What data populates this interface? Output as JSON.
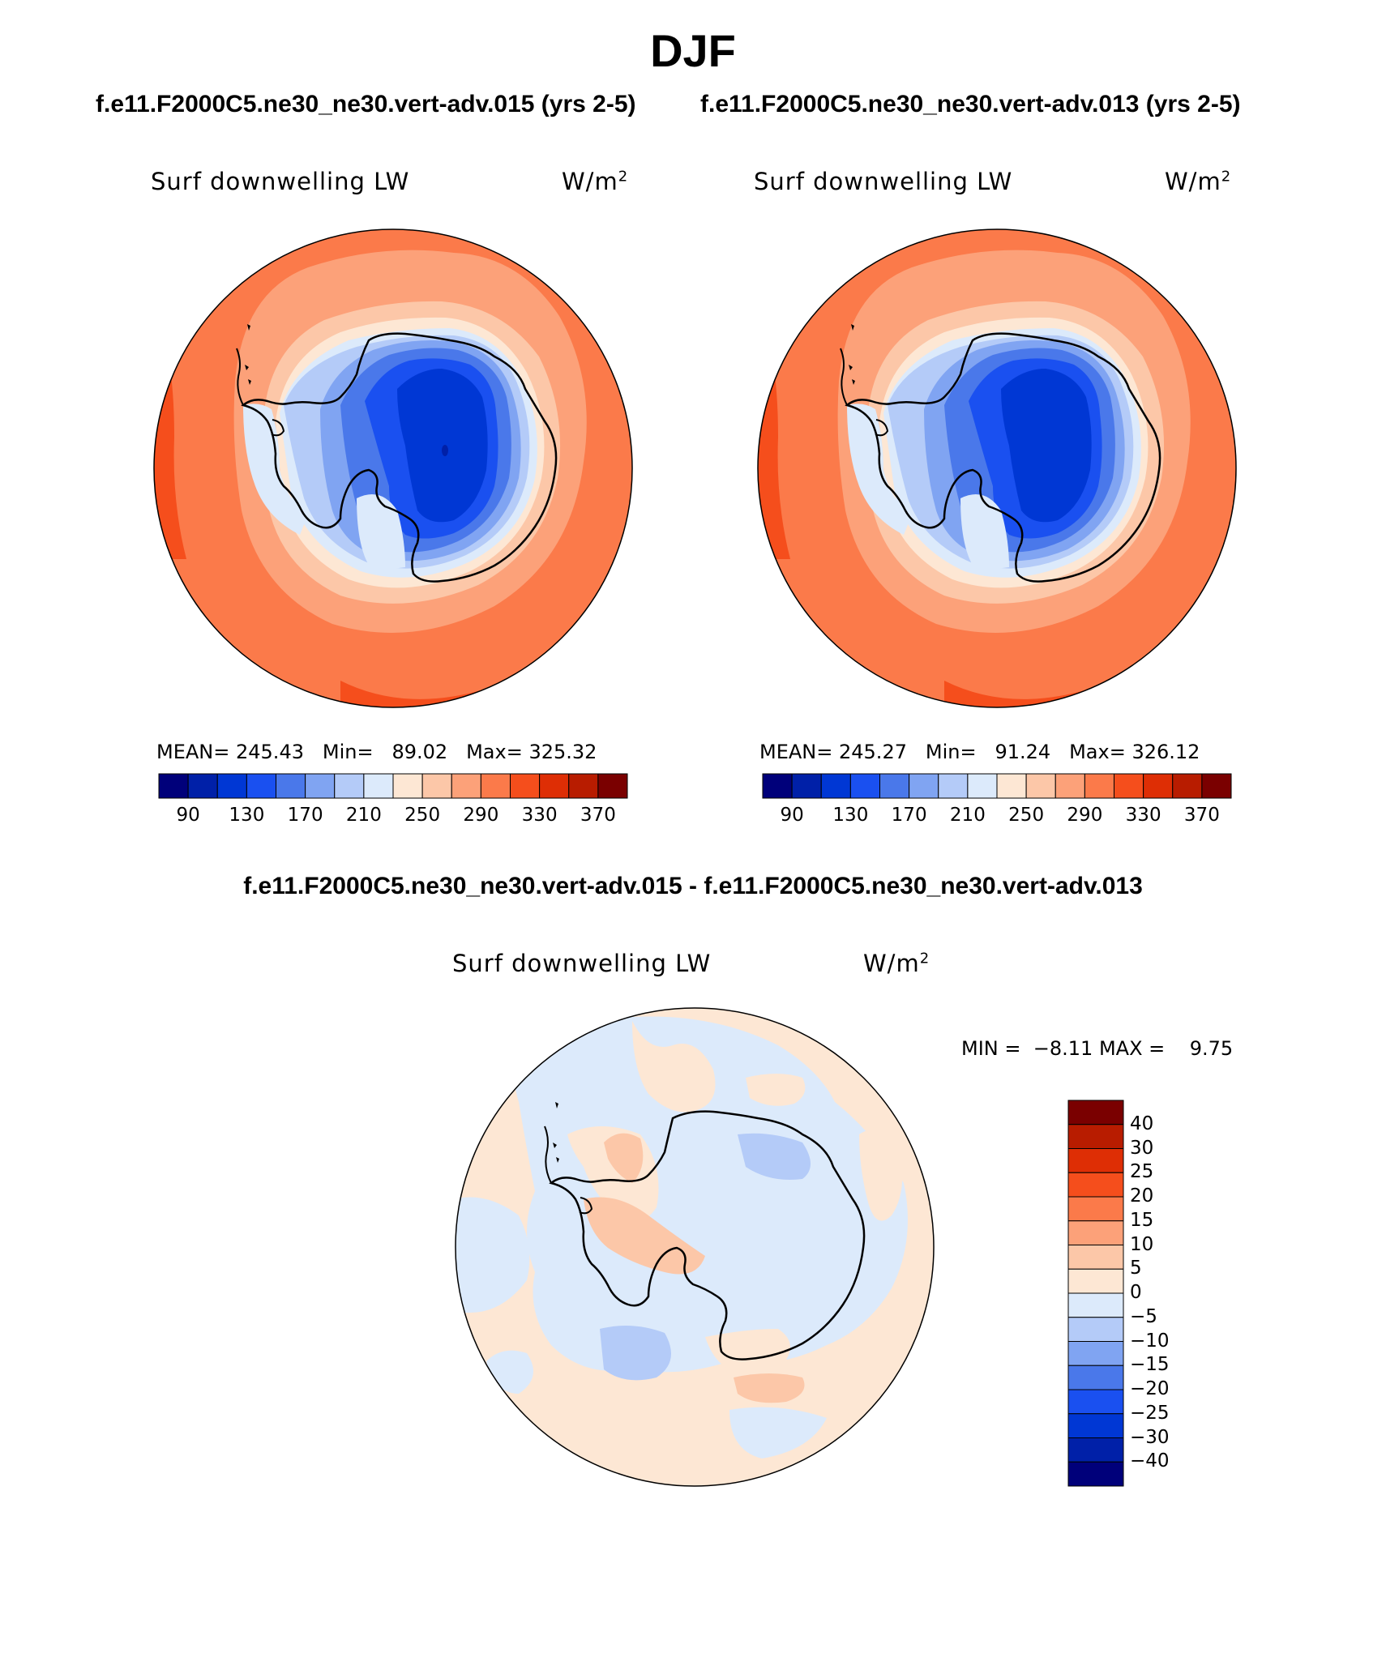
{
  "title": "DJF",
  "cases": {
    "left": "f.e11.F2000C5.ne30_ne30.vert-adv.015 (yrs 2-5)",
    "right": "f.e11.F2000C5.ne30_ne30.vert-adv.013 (yrs 2-5)"
  },
  "diff_title": "f.e11.F2000C5.ne30_ne30.vert-adv.015 - f.e11.F2000C5.ne30_ne30.vert-adv.013",
  "panels": [
    {
      "id": "left",
      "variable": "Surf downwelling LW",
      "units": "W/m",
      "units_exp": "2",
      "mean_label": "MEAN=",
      "mean": "245.43",
      "min_label": "Min=",
      "min": "89.02",
      "max_label": "Max=",
      "max": "325.32"
    },
    {
      "id": "right",
      "variable": "Surf downwelling LW",
      "units": "W/m",
      "units_exp": "2",
      "mean_label": "MEAN=",
      "mean": "245.27",
      "min_label": "Min=",
      "min": "91.24",
      "max_label": "Max=",
      "max": "326.12"
    }
  ],
  "diff_panel": {
    "variable": "Surf downwelling LW",
    "units": "W/m",
    "units_exp": "2",
    "min_label": "MIN =",
    "min": "−8.11",
    "max_label": "MAX =",
    "max": "9.75"
  },
  "colorbar_abs": {
    "labels": [
      "90",
      "130",
      "170",
      "210",
      "250",
      "290",
      "330",
      "370"
    ],
    "colors": [
      "#00007a",
      "#0020a8",
      "#0037d4",
      "#1a50f0",
      "#4a78ea",
      "#80a4f2",
      "#b4cbf8",
      "#dceafb",
      "#fde7d4",
      "#fcc7a8",
      "#fca179",
      "#fb7a4a",
      "#f54e1c",
      "#de2e05",
      "#b81c00",
      "#7a0000"
    ]
  },
  "colorbar_diff": {
    "labels": [
      "40",
      "30",
      "25",
      "20",
      "15",
      "10",
      "5",
      "0",
      "−5",
      "−10",
      "−15",
      "−20",
      "−25",
      "−30",
      "−40"
    ],
    "colors": [
      "#7a0000",
      "#b81c00",
      "#de2e05",
      "#f54e1c",
      "#fb7a4a",
      "#fca179",
      "#fcc7a8",
      "#fde7d4",
      "#dceafb",
      "#b4cbf8",
      "#80a4f2",
      "#4a78ea",
      "#1a50f0",
      "#0037d4",
      "#0020a8",
      "#00007a"
    ]
  }
}
